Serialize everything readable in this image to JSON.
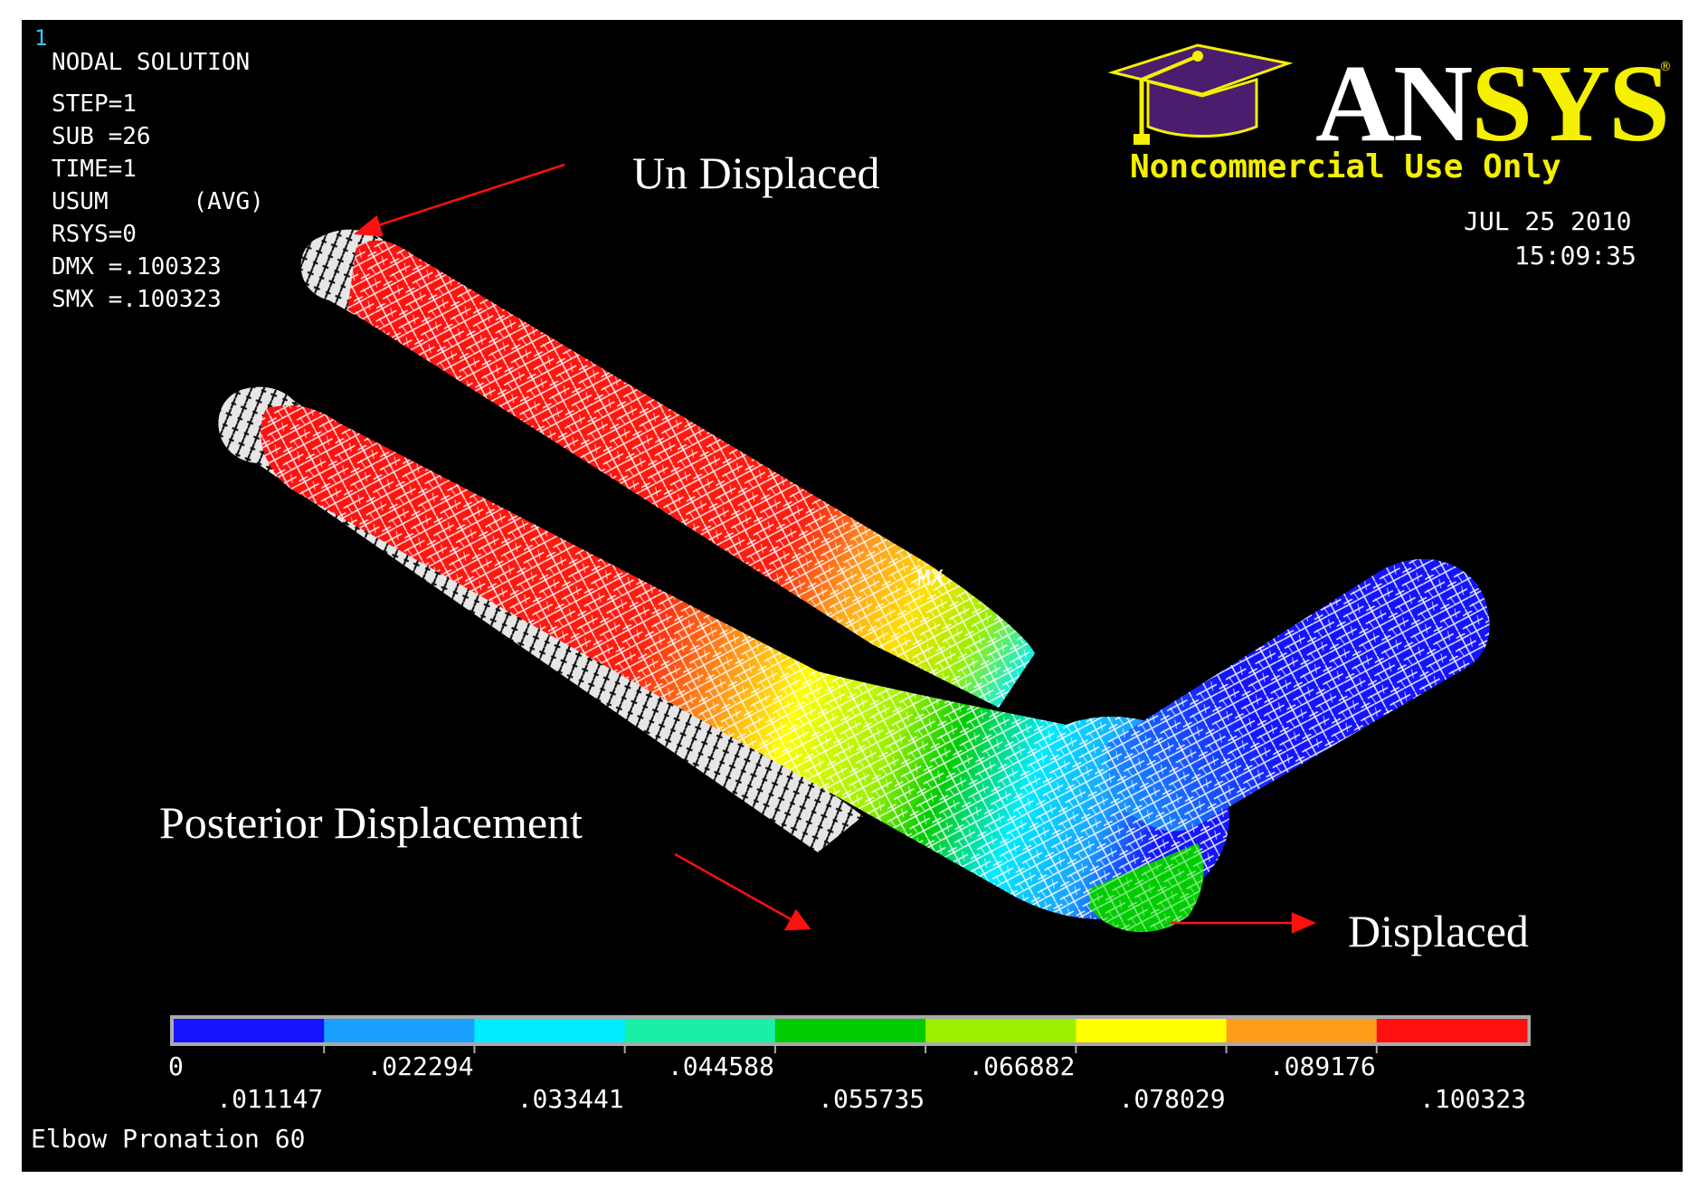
{
  "window_number": "1",
  "info_block": {
    "title": "NODAL SOLUTION",
    "lines": [
      "STEP=1",
      "SUB =26",
      "TIME=1",
      "USUM      (AVG)",
      "RSYS=0",
      "DMX =.100323",
      "SMX =.100323"
    ]
  },
  "logo": {
    "text_white": "AN",
    "text_yellow": "SYS",
    "registered": "®",
    "license": "Noncommercial Use Only"
  },
  "datetime": {
    "date": "JUL 25 2010",
    "time": "15:09:35"
  },
  "annotations": {
    "un_displaced": "Un Displaced",
    "posterior": "Posterior Displacement",
    "displaced": "Displaced",
    "mx_marker": "MX"
  },
  "legend": {
    "colors": [
      "#1414ff",
      "#1aa0ff",
      "#00ecff",
      "#18f0a8",
      "#00cc00",
      "#9af000",
      "#ffff00",
      "#ff9c1a",
      "#ff1010"
    ],
    "labels": [
      "0",
      ".011147",
      ".022294",
      ".033441",
      ".044588",
      ".055735",
      ".066882",
      ".078029",
      ".089176",
      ".100323"
    ]
  },
  "footer_title": "Elbow Pronation 60",
  "colors": {
    "background": "#000000",
    "logo_yellow": "#f4f000",
    "cap_purple": "#4b1d6e",
    "arrow_red": "#ff1010",
    "window_number": "#35c9ff"
  }
}
